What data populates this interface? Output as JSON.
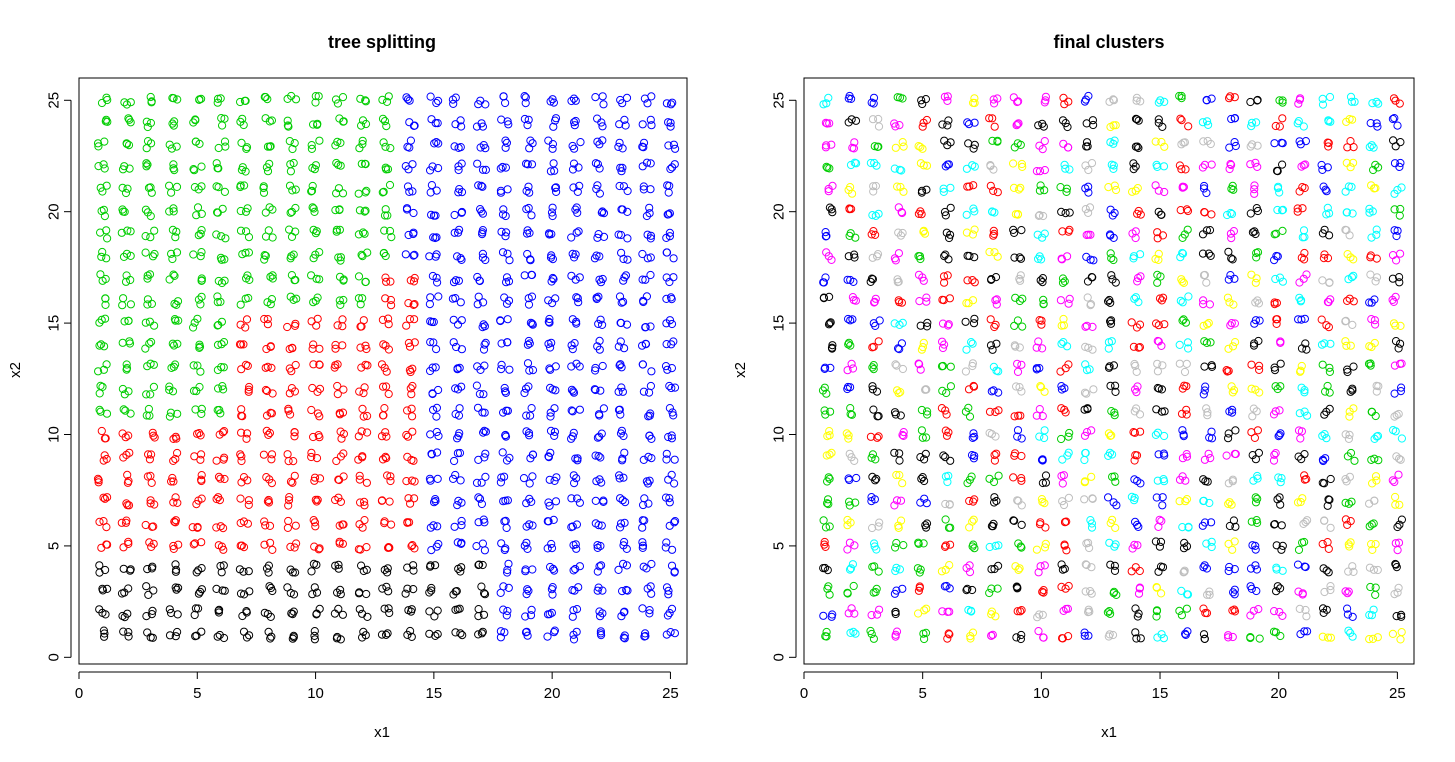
{
  "chart_data": [
    {
      "type": "scatter",
      "title": "tree splitting",
      "xlabel": "x1",
      "ylabel": "x2",
      "xlim": [
        0,
        25.7
      ],
      "ylim": [
        -0.3,
        26
      ],
      "x_ticks": [
        0,
        5,
        10,
        15,
        20,
        25
      ],
      "y_ticks": [
        0,
        5,
        10,
        15,
        20,
        25
      ],
      "marker": "open-circle",
      "grid": false,
      "grid_points": {
        "x": [
          1,
          2,
          3,
          4,
          5,
          6,
          7,
          8,
          9,
          10,
          11,
          12,
          13,
          14,
          15,
          16,
          17,
          18,
          19,
          20,
          21,
          22,
          23,
          24,
          25
        ],
        "y": [
          1,
          2,
          3,
          4,
          5,
          6,
          7,
          8,
          9,
          10,
          11,
          12,
          13,
          14,
          15,
          16,
          17,
          18,
          19,
          20,
          21,
          22,
          23,
          24,
          25
        ],
        "points_per_cell": 3,
        "jitter": 0.2
      },
      "coloring": "tree",
      "regions": [
        {
          "color": "#000000",
          "x_range": [
            0,
            17.5
          ],
          "y_range": [
            0,
            4.5
          ]
        },
        {
          "color": "#0000ff",
          "x_range": [
            17.5,
            26
          ],
          "y_range": [
            0,
            26
          ]
        },
        {
          "color": "#0000ff",
          "x_range": [
            14.5,
            17.5
          ],
          "y_range": [
            4.5,
            26
          ]
        },
        {
          "color": "#0000ff",
          "x_range": [
            13.5,
            14.5
          ],
          "y_range": [
            17.5,
            26
          ]
        },
        {
          "color": "#ff0000",
          "x_range": [
            0,
            6.5
          ],
          "y_range": [
            4.5,
            10.5
          ]
        },
        {
          "color": "#ff0000",
          "x_range": [
            6.5,
            12.5
          ],
          "y_range": [
            4.5,
            15.5
          ]
        },
        {
          "color": "#ff0000",
          "x_range": [
            12.5,
            14.5
          ],
          "y_range": [
            4.5,
            17.5
          ]
        },
        {
          "color": "#00cd00",
          "x_range": [
            0,
            26
          ],
          "y_range": [
            0,
            26
          ]
        }
      ]
    },
    {
      "type": "scatter",
      "title": "final clusters",
      "xlabel": "x1",
      "ylabel": "x2",
      "xlim": [
        0,
        25.7
      ],
      "ylim": [
        -0.3,
        26
      ],
      "x_ticks": [
        0,
        5,
        10,
        15,
        20,
        25
      ],
      "y_ticks": [
        0,
        5,
        10,
        15,
        20,
        25
      ],
      "marker": "open-circle",
      "grid": false,
      "grid_points": {
        "x": [
          1,
          2,
          3,
          4,
          5,
          6,
          7,
          8,
          9,
          10,
          11,
          12,
          13,
          14,
          15,
          16,
          17,
          18,
          19,
          20,
          21,
          22,
          23,
          24,
          25
        ],
        "y": [
          1,
          2,
          3,
          4,
          5,
          6,
          7,
          8,
          9,
          10,
          11,
          12,
          13,
          14,
          15,
          16,
          17,
          18,
          19,
          20,
          21,
          22,
          23,
          24,
          25
        ],
        "points_per_cell": 3,
        "jitter": 0.2
      },
      "coloring": "per-cell-cluster",
      "palette": [
        "#000000",
        "#ff0000",
        "#00cd00",
        "#0000ff",
        "#00ffff",
        "#ff00ff",
        "#ffff00",
        "#bebebe"
      ]
    }
  ]
}
